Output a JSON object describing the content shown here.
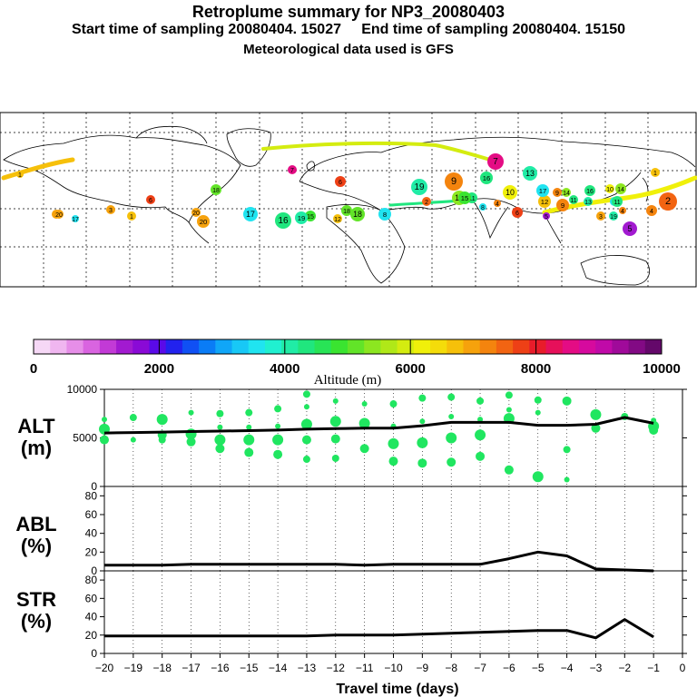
{
  "header": {
    "title": "Retroplume summary for NP3_20080403",
    "subtitle": "Start time of sampling 20080404. 15027     End time of sampling 20080404. 15150",
    "met": "Meteorological data used is GFS"
  },
  "colorbar": {
    "ticks": [
      "0",
      "2000",
      "4000",
      "6000",
      "8000",
      "10000"
    ],
    "label": "Altitude (m)",
    "colors": [
      "#f6d8f6",
      "#f0b6f0",
      "#e68ee8",
      "#d964e0",
      "#c23ad6",
      "#a21ad0",
      "#8a0ad6",
      "#5a0ae8",
      "#2222ee",
      "#1050f4",
      "#0a7cf6",
      "#10a6f8",
      "#18c8f6",
      "#20e4f0",
      "#20f0d0",
      "#20eca6",
      "#20e67e",
      "#28e456",
      "#3ae430",
      "#62e428",
      "#8ce620",
      "#b0e818",
      "#d4ec10",
      "#f0f00a",
      "#f4dc0a",
      "#f6c00a",
      "#f6a20c",
      "#f4840e",
      "#f26412",
      "#ee4016",
      "#e81c2a",
      "#e6105a",
      "#e40c84",
      "#d60a9e",
      "#c00aa8",
      "#a00a9a",
      "#820a84",
      "#64086a"
    ]
  },
  "map": {
    "markers": [
      {
        "label": "1",
        "color": "#f6c00a"
      },
      {
        "label": "2",
        "color": "#f26412"
      },
      {
        "label": "3",
        "color": "#f6a20c"
      },
      {
        "label": "4",
        "color": "#f4840e"
      },
      {
        "label": "5",
        "color": "#a21ad0"
      },
      {
        "label": "6",
        "color": "#ee4016"
      },
      {
        "label": "7",
        "color": "#e40c84"
      },
      {
        "label": "8",
        "color": "#20e4f0"
      },
      {
        "label": "9",
        "color": "#f4840e"
      },
      {
        "label": "10",
        "color": "#f0f00a"
      },
      {
        "label": "11",
        "color": "#20e67e"
      },
      {
        "label": "12",
        "color": "#f6c00a"
      },
      {
        "label": "13",
        "color": "#20eca6"
      },
      {
        "label": "14",
        "color": "#8ce620"
      },
      {
        "label": "15",
        "color": "#3ae430"
      },
      {
        "label": "16",
        "color": "#20e67e"
      },
      {
        "label": "17",
        "color": "#20e4f0"
      },
      {
        "label": "18",
        "color": "#62e428"
      },
      {
        "label": "19",
        "color": "#20eca6"
      },
      {
        "label": "20",
        "color": "#f6a20c"
      }
    ]
  },
  "chart_data": [
    {
      "type": "scatter",
      "title": "ALT (m)",
      "xlabel": "Travel time (days)",
      "ylabel": "ALT (m)",
      "xlim": [
        -20,
        0
      ],
      "ylim": [
        0,
        10000
      ],
      "y_ticks": [
        "0",
        "5000",
        "10000"
      ],
      "x": [
        -20,
        -19,
        -18,
        -17,
        -16,
        -15,
        -14,
        -13,
        -12,
        -11,
        -10,
        -9,
        -8,
        -7,
        -6,
        -5,
        -4,
        -3,
        -2,
        -1
      ],
      "series": [
        {
          "name": "mean altitude",
          "values": [
            5500,
            5550,
            5600,
            5650,
            5700,
            5750,
            5800,
            5900,
            5950,
            6000,
            6000,
            6250,
            6600,
            6600,
            6600,
            6300,
            6300,
            6400,
            7100,
            6500
          ]
        },
        {
          "name": "particle cluster altitudes",
          "points": [
            [
              -20,
              6900
            ],
            [
              -20,
              5900
            ],
            [
              -20,
              4800
            ],
            [
              -19,
              7100
            ],
            [
              -19,
              4800
            ],
            [
              -18,
              6900
            ],
            [
              -18,
              5300
            ],
            [
              -18,
              4800
            ],
            [
              -17,
              7600
            ],
            [
              -17,
              5400
            ],
            [
              -17,
              4600
            ],
            [
              -16,
              7500
            ],
            [
              -16,
              6100
            ],
            [
              -16,
              4800
            ],
            [
              -16,
              3900
            ],
            [
              -15,
              7600
            ],
            [
              -15,
              6100
            ],
            [
              -15,
              4800
            ],
            [
              -15,
              3500
            ],
            [
              -14,
              8000
            ],
            [
              -14,
              6200
            ],
            [
              -14,
              4800
            ],
            [
              -14,
              3300
            ],
            [
              -13,
              9500
            ],
            [
              -13,
              8200
            ],
            [
              -13,
              6400
            ],
            [
              -13,
              4800
            ],
            [
              -13,
              2800
            ],
            [
              -12,
              8800
            ],
            [
              -12,
              6700
            ],
            [
              -12,
              4900
            ],
            [
              -12,
              2900
            ],
            [
              -11,
              8500
            ],
            [
              -11,
              6500
            ],
            [
              -11,
              3900
            ],
            [
              -10,
              8500
            ],
            [
              -10,
              6200
            ],
            [
              -10,
              4400
            ],
            [
              -10,
              2600
            ],
            [
              -9,
              9100
            ],
            [
              -9,
              6700
            ],
            [
              -9,
              4500
            ],
            [
              -9,
              2400
            ],
            [
              -8,
              9200
            ],
            [
              -8,
              7200
            ],
            [
              -8,
              5000
            ],
            [
              -8,
              2500
            ],
            [
              -7,
              8800
            ],
            [
              -7,
              6900
            ],
            [
              -7,
              5300
            ],
            [
              -7,
              3100
            ],
            [
              -6,
              9400
            ],
            [
              -6,
              7900
            ],
            [
              -6,
              7000
            ],
            [
              -6,
              1700
            ],
            [
              -5,
              8900
            ],
            [
              -5,
              7600
            ],
            [
              -5,
              1000
            ],
            [
              -4,
              8800
            ],
            [
              -4,
              3800
            ],
            [
              -4,
              700
            ],
            [
              -3,
              7400
            ],
            [
              -3,
              6000
            ],
            [
              -2,
              7200
            ],
            [
              -1,
              6800
            ],
            [
              -1,
              6200
            ],
            [
              -1,
              5800
            ]
          ]
        }
      ]
    },
    {
      "type": "line",
      "title": "ABL (%)",
      "ylabel": "ABL (%)",
      "xlim": [
        -20,
        0
      ],
      "ylim": [
        0,
        90
      ],
      "y_ticks": [
        "0",
        "20",
        "40",
        "60",
        "80"
      ],
      "x": [
        -20,
        -19,
        -18,
        -17,
        -16,
        -15,
        -14,
        -13,
        -12,
        -11,
        -10,
        -9,
        -8,
        -7,
        -6,
        -5,
        -4,
        -3,
        -2,
        -1
      ],
      "values": [
        6,
        6,
        6,
        7,
        7,
        7,
        7,
        7,
        7,
        6,
        7,
        7,
        7,
        7,
        13,
        20,
        16,
        2,
        1,
        0
      ]
    },
    {
      "type": "line",
      "title": "STR (%)",
      "ylabel": "STR (%)",
      "xlabel": "Travel time (days)",
      "xlim": [
        -20,
        0
      ],
      "ylim": [
        0,
        90
      ],
      "y_ticks": [
        "0",
        "20",
        "40",
        "60",
        "80"
      ],
      "x_ticks": [
        "−20",
        "−19",
        "−18",
        "−17",
        "−16",
        "−15",
        "−14",
        "−13",
        "−12",
        "−11",
        "−10",
        "−9",
        "−8",
        "−7",
        "−6",
        "−5",
        "−4",
        "−3",
        "−2",
        "−1",
        "0"
      ],
      "x": [
        -20,
        -19,
        -18,
        -17,
        -16,
        -15,
        -14,
        -13,
        -12,
        -11,
        -10,
        -9,
        -8,
        -7,
        -6,
        -5,
        -4,
        -3,
        -2,
        -1
      ],
      "values": [
        19,
        19,
        19,
        19,
        19,
        19,
        19,
        19,
        20,
        20,
        20,
        21,
        22,
        23,
        24,
        25,
        25,
        17,
        37,
        18
      ]
    }
  ],
  "panel_labels": {
    "alt": [
      "ALT",
      "(m)"
    ],
    "abl": [
      "ABL",
      "(%)"
    ],
    "str": [
      "STR",
      "(%)"
    ]
  }
}
